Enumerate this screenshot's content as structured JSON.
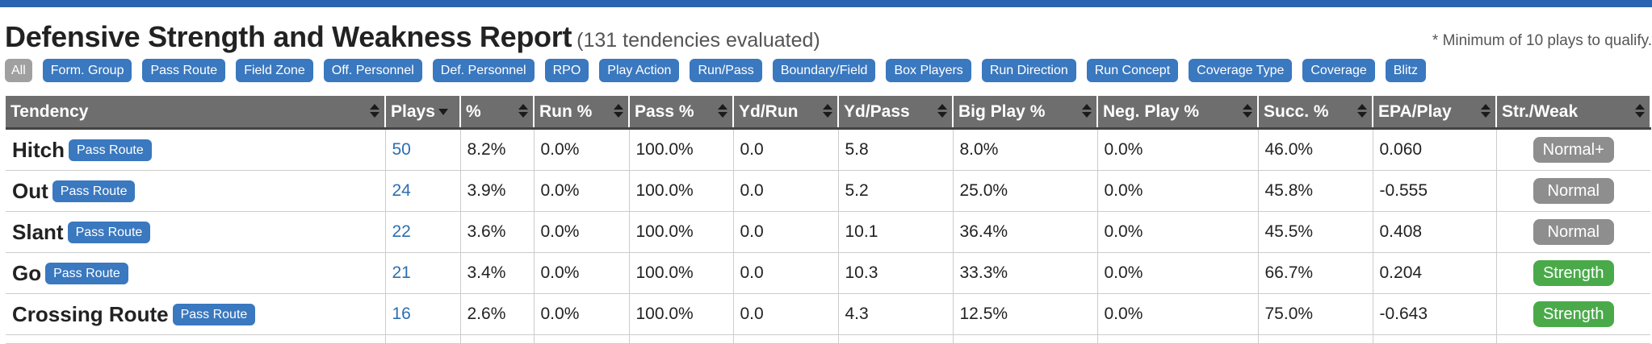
{
  "header": {
    "title": "Defensive Strength and Weakness Report",
    "subtitle": "(131 tendencies evaluated)",
    "note": "* Minimum of 10 plays to qualify."
  },
  "filters": [
    "All",
    "Form. Group",
    "Pass Route",
    "Field Zone",
    "Off. Personnel",
    "Def. Personnel",
    "RPO",
    "Play Action",
    "Run/Pass",
    "Boundary/Field",
    "Box Players",
    "Run Direction",
    "Run Concept",
    "Coverage Type",
    "Coverage",
    "Blitz"
  ],
  "table": {
    "columns": [
      "Tendency",
      "Plays",
      "%",
      "Run %",
      "Pass %",
      "Yd/Run",
      "Yd/Pass",
      "Big Play %",
      "Neg. Play %",
      "Succ. %",
      "EPA/Play",
      "Str./Weak"
    ],
    "rows": [
      {
        "name": "Hitch",
        "tag": "Pass Route",
        "plays": "50",
        "pct": "8.2%",
        "run": "0.0%",
        "pass": "100.0%",
        "ydrun": "0.0",
        "ydpass": "5.8",
        "big": "8.0%",
        "neg": "0.0%",
        "succ": "46.0%",
        "epa": "0.060",
        "sw": "Normal+",
        "sw_type": "normal"
      },
      {
        "name": "Out",
        "tag": "Pass Route",
        "plays": "24",
        "pct": "3.9%",
        "run": "0.0%",
        "pass": "100.0%",
        "ydrun": "0.0",
        "ydpass": "5.2",
        "big": "25.0%",
        "neg": "0.0%",
        "succ": "45.8%",
        "epa": "-0.555",
        "sw": "Normal",
        "sw_type": "normal"
      },
      {
        "name": "Slant",
        "tag": "Pass Route",
        "plays": "22",
        "pct": "3.6%",
        "run": "0.0%",
        "pass": "100.0%",
        "ydrun": "0.0",
        "ydpass": "10.1",
        "big": "36.4%",
        "neg": "0.0%",
        "succ": "45.5%",
        "epa": "0.408",
        "sw": "Normal",
        "sw_type": "normal"
      },
      {
        "name": "Go",
        "tag": "Pass Route",
        "plays": "21",
        "pct": "3.4%",
        "run": "0.0%",
        "pass": "100.0%",
        "ydrun": "0.0",
        "ydpass": "10.3",
        "big": "33.3%",
        "neg": "0.0%",
        "succ": "66.7%",
        "epa": "0.204",
        "sw": "Strength",
        "sw_type": "strength"
      },
      {
        "name": "Crossing Route",
        "tag": "Pass Route",
        "plays": "16",
        "pct": "2.6%",
        "run": "0.0%",
        "pass": "100.0%",
        "ydrun": "0.0",
        "ydpass": "4.3",
        "big": "12.5%",
        "neg": "0.0%",
        "succ": "75.0%",
        "epa": "-0.643",
        "sw": "Strength",
        "sw_type": "strength"
      }
    ]
  },
  "colors": {
    "accent": "#3a78bf",
    "header_bg": "#6e6e6e",
    "normal": "#8e8e8e",
    "strength": "#4aaa4a",
    "plays_link": "#2a6fb0"
  }
}
